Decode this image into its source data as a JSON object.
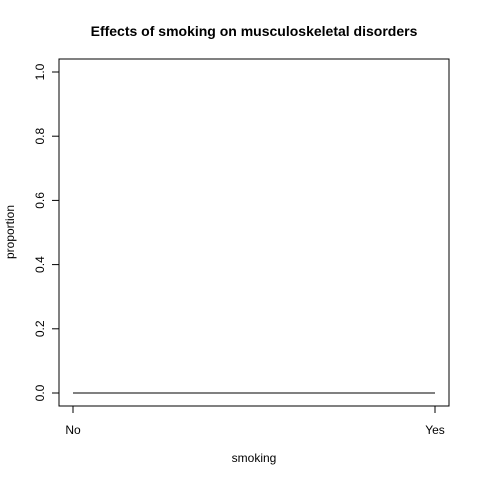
{
  "chart_data": {
    "type": "line",
    "title": "Effects of smoking on musculoskeletal disorders",
    "xlabel": "smoking",
    "ylabel": "proportion",
    "categories": [
      "No",
      "Yes"
    ],
    "series": [
      {
        "values": [
          0.0,
          0.0
        ]
      }
    ],
    "ylim": [
      0,
      1
    ],
    "yticks": [
      0.0,
      0.2,
      0.4,
      0.6,
      0.8,
      1.0
    ],
    "ytick_labels": [
      "0.0",
      "0.2",
      "0.4",
      "0.6",
      "0.8",
      "1.0"
    ],
    "grid": false,
    "line_color": "#000000"
  }
}
